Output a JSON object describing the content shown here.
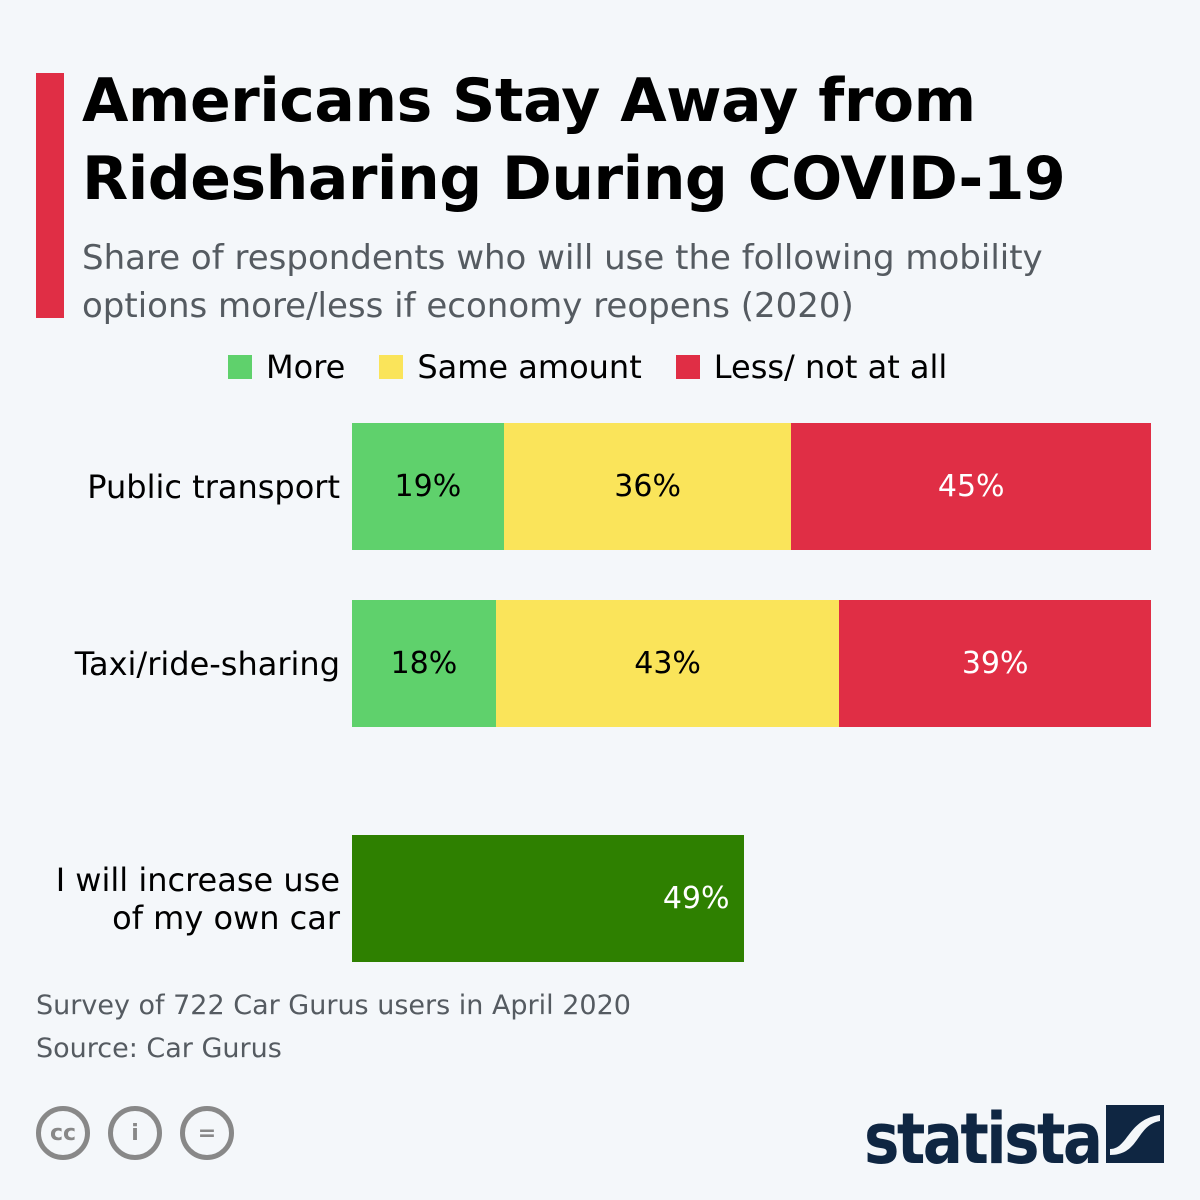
{
  "title_line1": "Americans Stay Away from",
  "title_line2": "Ridesharing During COVID-19",
  "subtitle_line1": "Share of respondents who will use the following mobility",
  "subtitle_line2": "options more/less if economy reopens (2020)",
  "footer": {
    "note": "Survey of 722 Car Gurus users in April 2020",
    "source": "Source: Car Gurus",
    "brand": "statista"
  },
  "colors": {
    "more": "#5fd16c",
    "same": "#fae45a",
    "less": "#e02e45",
    "own_car": "#2e8000",
    "accent": "#e02e45"
  },
  "chart_data": {
    "type": "bar",
    "stacked": true,
    "orientation": "horizontal",
    "title": "Americans Stay Away from Ridesharing During COVID-19",
    "legend": [
      "More",
      "Same amount",
      "Less/ not at all"
    ],
    "legend_position": "top",
    "categories": [
      "Public transport",
      "Taxi/ride-sharing"
    ],
    "series": [
      {
        "name": "More",
        "values": [
          19,
          18
        ]
      },
      {
        "name": "Same amount",
        "values": [
          36,
          43
        ]
      },
      {
        "name": "Less/ not at all",
        "values": [
          45,
          39
        ]
      }
    ],
    "extra": {
      "label_line1": "I will increase use",
      "label_line2": "of my own car",
      "value": 49
    },
    "xlim": [
      0,
      100
    ],
    "unit": "%"
  }
}
